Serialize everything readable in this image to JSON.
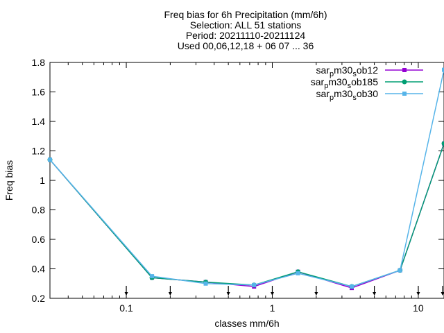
{
  "chart_data": {
    "type": "line",
    "title": [
      "Freq bias  for 6h Precipitation (mm/6h)",
      "Selection: ALL     51 stations",
      "Period: 20211110-20211124",
      "Used 00,06,12,18 + 06 07 ... 36"
    ],
    "xlabel": "classes mm/6h",
    "ylabel": "Freq bias",
    "x_scale": "log",
    "xlim": [
      0.03,
      15
    ],
    "ylim": [
      0.2,
      1.8
    ],
    "x_ticks": [
      0.1,
      1,
      10
    ],
    "x_tick_labels": [
      "0.1",
      "1",
      "10"
    ],
    "y_ticks": [
      0.2,
      0.4,
      0.6,
      0.8,
      1,
      1.2,
      1.4,
      1.6,
      1.8
    ],
    "y_tick_labels": [
      "0.2",
      "0.4",
      "0.6",
      "0.8",
      "1",
      "1.2",
      "1.4",
      "1.6",
      "1.8"
    ],
    "class_limits": [
      0.1,
      0.2,
      0.5,
      1,
      2,
      5,
      10,
      20
    ],
    "x": [
      0.03,
      0.15,
      0.35,
      0.75,
      1.5,
      3.5,
      7.5,
      15
    ],
    "legend_position": "top-right",
    "grid": false,
    "series": [
      {
        "name_parts": [
          "sar",
          "p",
          "m30",
          "s",
          "ob12"
        ],
        "color": "#9400d3",
        "marker": "filled-square",
        "values": [
          1.14,
          0.34,
          0.31,
          0.28,
          0.38,
          0.27,
          0.39,
          1.25
        ]
      },
      {
        "name_parts": [
          "sar",
          "p",
          "m30",
          "s",
          "ob185"
        ],
        "color": "#009e73",
        "marker": "filled-circle",
        "values": [
          1.14,
          0.34,
          0.31,
          0.29,
          0.38,
          0.28,
          0.39,
          1.25
        ]
      },
      {
        "name_parts": [
          "sar",
          "p",
          "m30",
          "s",
          "ob30"
        ],
        "color": "#56b4e9",
        "marker": "filled-square",
        "values": [
          1.14,
          0.35,
          0.3,
          0.29,
          0.37,
          0.28,
          0.39,
          1.75
        ]
      }
    ]
  }
}
